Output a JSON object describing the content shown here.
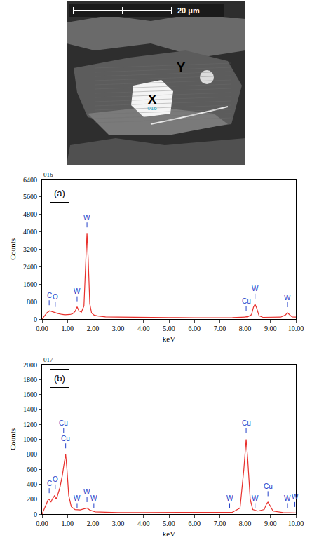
{
  "micrograph": {
    "scale_bar": "20 μm",
    "points": [
      {
        "label": "X",
        "spot": "016"
      },
      {
        "label": "Y"
      }
    ]
  },
  "chart_data": [
    {
      "type": "line",
      "panel_label": "(a)",
      "spectrum_id": "016",
      "color": "#e8302c",
      "xlabel": "keV",
      "ylabel": "Counts",
      "grid": false,
      "x": [
        0.0,
        0.1,
        0.2,
        0.3,
        0.4,
        0.5,
        0.6,
        0.7,
        0.8,
        0.9,
        1.0,
        1.1,
        1.2,
        1.3,
        1.38,
        1.45,
        1.55,
        1.65,
        1.72,
        1.77,
        1.82,
        1.88,
        1.95,
        2.05,
        2.2,
        2.5,
        3.0,
        3.5,
        4.0,
        5.0,
        6.0,
        7.0,
        7.5,
        8.0,
        8.04,
        8.1,
        8.25,
        8.33,
        8.39,
        8.45,
        8.55,
        8.7,
        9.0,
        9.4,
        9.58,
        9.67,
        9.75,
        9.85,
        10.0
      ],
      "values": [
        0,
        150,
        300,
        380,
        330,
        300,
        260,
        230,
        210,
        200,
        200,
        210,
        240,
        350,
        560,
        380,
        320,
        600,
        2600,
        3950,
        2700,
        700,
        280,
        180,
        140,
        100,
        90,
        80,
        75,
        70,
        65,
        60,
        70,
        90,
        110,
        100,
        200,
        550,
        680,
        520,
        150,
        80,
        80,
        90,
        180,
        290,
        200,
        100,
        90
      ],
      "xlim": [
        0,
        10
      ],
      "xticks": [
        {
          "value": 0,
          "label": "0.00"
        },
        {
          "value": 1,
          "label": "1.00"
        },
        {
          "value": 2,
          "label": "2.00"
        },
        {
          "value": 3,
          "label": "3.00"
        },
        {
          "value": 4,
          "label": "4.00"
        },
        {
          "value": 5,
          "label": "5.00"
        },
        {
          "value": 6,
          "label": "6.00"
        },
        {
          "value": 7,
          "label": "7.00"
        },
        {
          "value": 8,
          "label": "8.00"
        },
        {
          "value": 9,
          "label": "9.00"
        },
        {
          "value": 10,
          "label": "10.00"
        }
      ],
      "ylim": [
        0,
        6400
      ],
      "yticks": [
        0,
        800,
        1600,
        2400,
        3200,
        4000,
        4800,
        5600,
        6400
      ],
      "annotations": [
        {
          "x": 0.28,
          "text": "C"
        },
        {
          "x": 0.52,
          "text": "O"
        },
        {
          "x": 1.38,
          "text": "W"
        },
        {
          "x": 1.77,
          "text": "W"
        },
        {
          "x": 8.04,
          "text": "Cu"
        },
        {
          "x": 8.39,
          "text": "W"
        },
        {
          "x": 9.67,
          "text": "W"
        }
      ]
    },
    {
      "type": "line",
      "panel_label": "(b)",
      "spectrum_id": "017",
      "color": "#e8302c",
      "xlabel": "keV",
      "ylabel": "Counts",
      "grid": false,
      "x": [
        0.0,
        0.1,
        0.2,
        0.25,
        0.3,
        0.35,
        0.4,
        0.5,
        0.55,
        0.6,
        0.7,
        0.8,
        0.88,
        0.93,
        0.98,
        1.05,
        1.15,
        1.3,
        1.5,
        1.7,
        1.77,
        1.9,
        2.1,
        2.5,
        3.0,
        4.0,
        5.0,
        6.0,
        7.0,
        7.5,
        7.8,
        7.95,
        8.04,
        8.1,
        8.2,
        8.3,
        8.5,
        8.75,
        8.85,
        8.9,
        8.97,
        9.1,
        9.5,
        10.0
      ],
      "values": [
        0,
        80,
        170,
        200,
        190,
        160,
        200,
        250,
        200,
        240,
        350,
        520,
        700,
        800,
        600,
        250,
        100,
        60,
        55,
        70,
        80,
        50,
        30,
        25,
        20,
        20,
        20,
        20,
        20,
        25,
        80,
        600,
        1000,
        750,
        200,
        60,
        40,
        60,
        140,
        160,
        120,
        40,
        20,
        15
      ],
      "xlim": [
        0,
        10
      ],
      "xticks": [
        {
          "value": 0,
          "label": "0.00"
        },
        {
          "value": 1,
          "label": "1.00"
        },
        {
          "value": 2,
          "label": "2.00"
        },
        {
          "value": 3,
          "label": "3.00"
        },
        {
          "value": 4,
          "label": "4.00"
        },
        {
          "value": 5,
          "label": "5.00"
        },
        {
          "value": 6,
          "label": "6.00"
        },
        {
          "value": 7,
          "label": "7.00"
        },
        {
          "value": 8,
          "label": "8.00"
        },
        {
          "value": 9,
          "label": "9.00"
        },
        {
          "value": 10,
          "label": "10.00"
        }
      ],
      "ylim": [
        0,
        2000
      ],
      "yticks": [
        0,
        200,
        400,
        600,
        800,
        1000,
        1200,
        1400,
        1600,
        1800,
        2000
      ],
      "annotations": [
        {
          "x": 0.28,
          "text": "C"
        },
        {
          "x": 0.52,
          "text": "O"
        },
        {
          "x": 0.93,
          "text": "Cu"
        },
        {
          "x": 0.85,
          "text": "Cu"
        },
        {
          "x": 1.38,
          "text": "W"
        },
        {
          "x": 1.77,
          "text": "W"
        },
        {
          "x": 2.04,
          "text": "W"
        },
        {
          "x": 7.39,
          "text": "W"
        },
        {
          "x": 8.04,
          "text": "Cu"
        },
        {
          "x": 8.39,
          "text": "W"
        },
        {
          "x": 8.9,
          "text": "Cu"
        },
        {
          "x": 9.67,
          "text": "W"
        },
        {
          "x": 9.96,
          "text": "W"
        }
      ]
    }
  ]
}
